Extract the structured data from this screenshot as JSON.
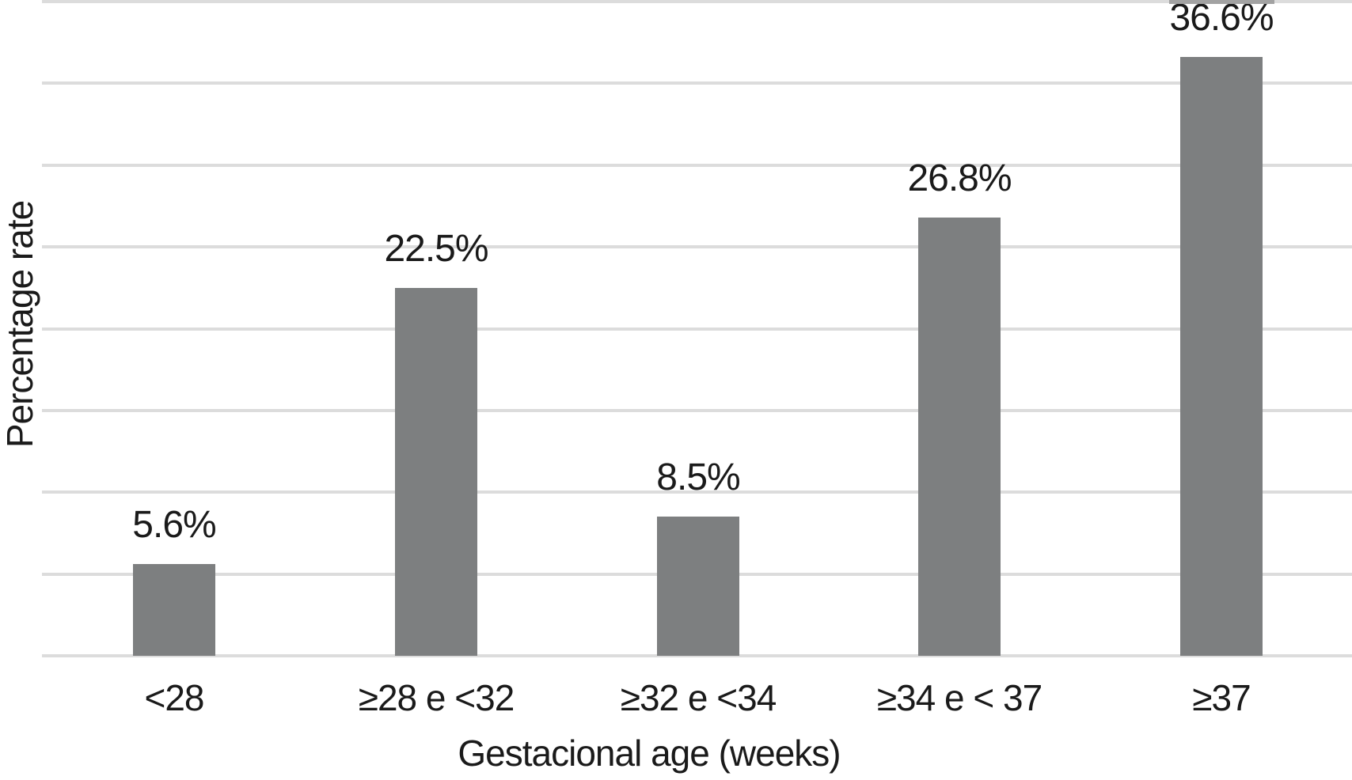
{
  "chart_data": {
    "type": "bar",
    "categories": [
      "<28",
      "≥28 e <32",
      "≥32 e <34",
      "≥34 e < 37",
      "≥37"
    ],
    "values": [
      5.6,
      22.5,
      8.5,
      26.8,
      36.6
    ],
    "value_labels": [
      "5.6%",
      "22.5%",
      "8.5%",
      "26.8%",
      "36.6%"
    ],
    "title": "",
    "xlabel": "Gestacional age (weeks)",
    "ylabel": "Percentage rate",
    "ylim": [
      0,
      40
    ],
    "gridline_step_percent": 5,
    "grid": "horizontal",
    "legend_position": "none",
    "colors": {
      "bar": "#7d7f80",
      "gridline": "#dcdcdc",
      "text": "#1a1a1a",
      "background": "#ffffff"
    }
  }
}
